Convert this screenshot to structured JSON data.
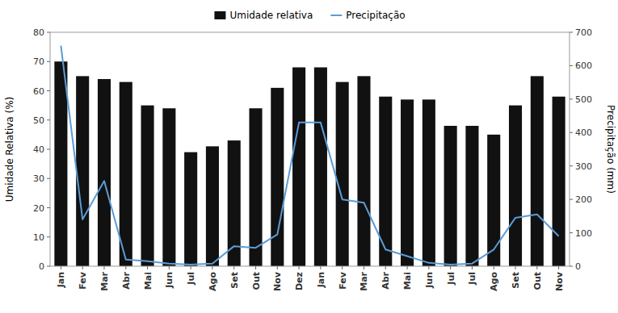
{
  "chart_data": {
    "type": "bar",
    "categories": [
      "Jan",
      "Fev",
      "Mar",
      "Abr",
      "Mai",
      "Jun",
      "Jul",
      "Ago",
      "Set",
      "Out",
      "Nov",
      "Dez",
      "Jan",
      "Fev",
      "Mar",
      "Abr",
      "Mai",
      "Jun",
      "Jul",
      "Jul",
      "Ago",
      "Set",
      "Out",
      "Nov"
    ],
    "series": [
      {
        "name": "Umidade relativa",
        "type": "bar",
        "color": "#111111",
        "values": [
          70,
          65,
          64,
          63,
          55,
          54,
          39,
          41,
          43,
          54,
          61,
          68,
          68,
          63,
          65,
          58,
          57,
          57,
          48,
          48,
          45,
          55,
          65,
          58
        ]
      },
      {
        "name": "Precipitação",
        "type": "line",
        "color": "#5b9bd5",
        "axis": "y2",
        "values": [
          660,
          140,
          255,
          20,
          15,
          8,
          5,
          8,
          60,
          55,
          95,
          430,
          430,
          200,
          190,
          50,
          30,
          10,
          5,
          8,
          50,
          145,
          155,
          90
        ]
      }
    ],
    "ylabel": "Umidade Relativa (%)",
    "y2label": "Precipitação (mm)",
    "ylim": [
      0,
      80
    ],
    "yticks": [
      0,
      10,
      20,
      30,
      40,
      50,
      60,
      70,
      80
    ],
    "y2lim": [
      0,
      700
    ],
    "y2ticks": [
      0,
      100,
      200,
      300,
      400,
      500,
      600,
      700
    ],
    "grid": false,
    "legend": "top"
  }
}
